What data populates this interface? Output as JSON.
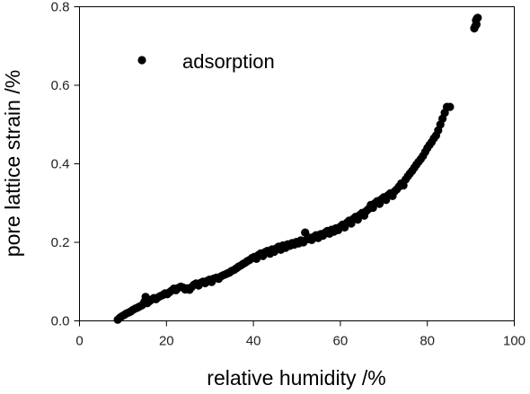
{
  "chart_data": {
    "type": "scatter",
    "xlabel": "relative humidity  /%",
    "ylabel": "pore lattice strain  /%",
    "xlim": [
      0,
      100
    ],
    "ylim": [
      0.0,
      0.8
    ],
    "xticks": [
      0,
      20,
      40,
      60,
      80,
      100
    ],
    "xtick_labels": [
      "0",
      "20",
      "40",
      "60",
      "80",
      "100"
    ],
    "yticks": [
      0.0,
      0.2,
      0.4,
      0.6,
      0.8
    ],
    "ytick_labels": [
      "0.0",
      "0.2",
      "0.4",
      "0.6",
      "0.8"
    ],
    "grid": false,
    "legend_position": "top-left",
    "marker_color": "#000000",
    "series": [
      {
        "name": "adsorption",
        "points": [
          [
            8.8,
            0.003
          ],
          [
            9.3,
            0.008
          ],
          [
            9.8,
            0.012
          ],
          [
            10.3,
            0.015
          ],
          [
            10.8,
            0.019
          ],
          [
            11.3,
            0.021
          ],
          [
            11.8,
            0.024
          ],
          [
            12.3,
            0.028
          ],
          [
            12.8,
            0.031
          ],
          [
            13.4,
            0.034
          ],
          [
            13.9,
            0.037
          ],
          [
            14.4,
            0.04
          ],
          [
            14.9,
            0.048
          ],
          [
            15.2,
            0.061
          ],
          [
            15.6,
            0.045
          ],
          [
            16.1,
            0.05
          ],
          [
            16.6,
            0.054
          ],
          [
            17.1,
            0.058
          ],
          [
            17.6,
            0.055
          ],
          [
            18.1,
            0.06
          ],
          [
            18.6,
            0.063
          ],
          [
            19.2,
            0.066
          ],
          [
            19.7,
            0.07
          ],
          [
            20.2,
            0.068
          ],
          [
            20.7,
            0.073
          ],
          [
            21.2,
            0.077
          ],
          [
            21.7,
            0.082
          ],
          [
            22.2,
            0.078
          ],
          [
            22.7,
            0.084
          ],
          [
            23.3,
            0.087
          ],
          [
            23.8,
            0.085
          ],
          [
            24.3,
            0.08
          ],
          [
            24.8,
            0.083
          ],
          [
            25.3,
            0.079
          ],
          [
            25.8,
            0.086
          ],
          [
            26.3,
            0.092
          ],
          [
            26.8,
            0.095
          ],
          [
            27.4,
            0.09
          ],
          [
            27.9,
            0.097
          ],
          [
            28.4,
            0.1
          ],
          [
            28.9,
            0.096
          ],
          [
            29.4,
            0.102
          ],
          [
            29.9,
            0.105
          ],
          [
            30.4,
            0.099
          ],
          [
            30.9,
            0.108
          ],
          [
            31.5,
            0.11
          ],
          [
            32.0,
            0.107
          ],
          [
            32.5,
            0.113
          ],
          [
            33.0,
            0.116
          ],
          [
            33.5,
            0.118
          ],
          [
            34.0,
            0.121
          ],
          [
            34.5,
            0.123
          ],
          [
            35.0,
            0.127
          ],
          [
            35.6,
            0.13
          ],
          [
            36.1,
            0.134
          ],
          [
            36.6,
            0.138
          ],
          [
            37.1,
            0.141
          ],
          [
            37.6,
            0.145
          ],
          [
            38.1,
            0.148
          ],
          [
            38.6,
            0.152
          ],
          [
            39.1,
            0.155
          ],
          [
            39.7,
            0.16
          ],
          [
            40.2,
            0.163
          ],
          [
            40.7,
            0.158
          ],
          [
            41.2,
            0.168
          ],
          [
            41.7,
            0.172
          ],
          [
            42.2,
            0.165
          ],
          [
            42.7,
            0.175
          ],
          [
            43.2,
            0.178
          ],
          [
            43.8,
            0.171
          ],
          [
            44.3,
            0.182
          ],
          [
            44.8,
            0.176
          ],
          [
            45.3,
            0.185
          ],
          [
            45.8,
            0.189
          ],
          [
            46.3,
            0.181
          ],
          [
            46.8,
            0.192
          ],
          [
            47.4,
            0.186
          ],
          [
            47.9,
            0.195
          ],
          [
            48.4,
            0.191
          ],
          [
            48.9,
            0.198
          ],
          [
            49.4,
            0.194
          ],
          [
            49.9,
            0.201
          ],
          [
            50.4,
            0.197
          ],
          [
            50.9,
            0.205
          ],
          [
            51.5,
            0.2
          ],
          [
            51.9,
            0.225
          ],
          [
            52.4,
            0.208
          ],
          [
            52.9,
            0.212
          ],
          [
            53.4,
            0.206
          ],
          [
            53.9,
            0.214
          ],
          [
            54.4,
            0.218
          ],
          [
            54.9,
            0.211
          ],
          [
            55.5,
            0.221
          ],
          [
            56.0,
            0.217
          ],
          [
            56.5,
            0.225
          ],
          [
            57.0,
            0.229
          ],
          [
            57.5,
            0.222
          ],
          [
            58.0,
            0.232
          ],
          [
            58.5,
            0.227
          ],
          [
            59.0,
            0.236
          ],
          [
            59.5,
            0.231
          ],
          [
            60.0,
            0.24
          ],
          [
            60.5,
            0.245
          ],
          [
            61.0,
            0.238
          ],
          [
            61.5,
            0.25
          ],
          [
            62.0,
            0.255
          ],
          [
            62.5,
            0.248
          ],
          [
            63.0,
            0.26
          ],
          [
            63.5,
            0.265
          ],
          [
            64.0,
            0.258
          ],
          [
            64.5,
            0.27
          ],
          [
            65.0,
            0.275
          ],
          [
            65.5,
            0.268
          ],
          [
            66.0,
            0.28
          ],
          [
            66.5,
            0.285
          ],
          [
            67.0,
            0.295
          ],
          [
            67.5,
            0.288
          ],
          [
            68.0,
            0.3
          ],
          [
            68.5,
            0.305
          ],
          [
            69.0,
            0.298
          ],
          [
            69.5,
            0.31
          ],
          [
            70.0,
            0.315
          ],
          [
            70.5,
            0.308
          ],
          [
            71.0,
            0.32
          ],
          [
            71.5,
            0.325
          ],
          [
            72.0,
            0.318
          ],
          [
            72.5,
            0.33
          ],
          [
            73.0,
            0.335
          ],
          [
            73.5,
            0.342
          ],
          [
            74.0,
            0.35
          ],
          [
            74.5,
            0.345
          ],
          [
            75.0,
            0.36
          ],
          [
            75.5,
            0.368
          ],
          [
            76.0,
            0.375
          ],
          [
            76.5,
            0.382
          ],
          [
            77.0,
            0.39
          ],
          [
            77.5,
            0.398
          ],
          [
            78.0,
            0.405
          ],
          [
            78.5,
            0.412
          ],
          [
            79.0,
            0.42
          ],
          [
            79.5,
            0.43
          ],
          [
            80.0,
            0.44
          ],
          [
            80.5,
            0.448
          ],
          [
            81.0,
            0.455
          ],
          [
            81.5,
            0.465
          ],
          [
            82.0,
            0.472
          ],
          [
            82.5,
            0.485
          ],
          [
            83.0,
            0.5
          ],
          [
            83.5,
            0.515
          ],
          [
            84.0,
            0.53
          ],
          [
            84.5,
            0.545
          ],
          [
            85.2,
            0.545
          ],
          [
            90.8,
            0.745
          ],
          [
            91.0,
            0.75
          ],
          [
            91.2,
            0.765
          ],
          [
            91.4,
            0.77
          ],
          [
            91.6,
            0.772
          ],
          [
            91.3,
            0.755
          ]
        ]
      }
    ]
  }
}
